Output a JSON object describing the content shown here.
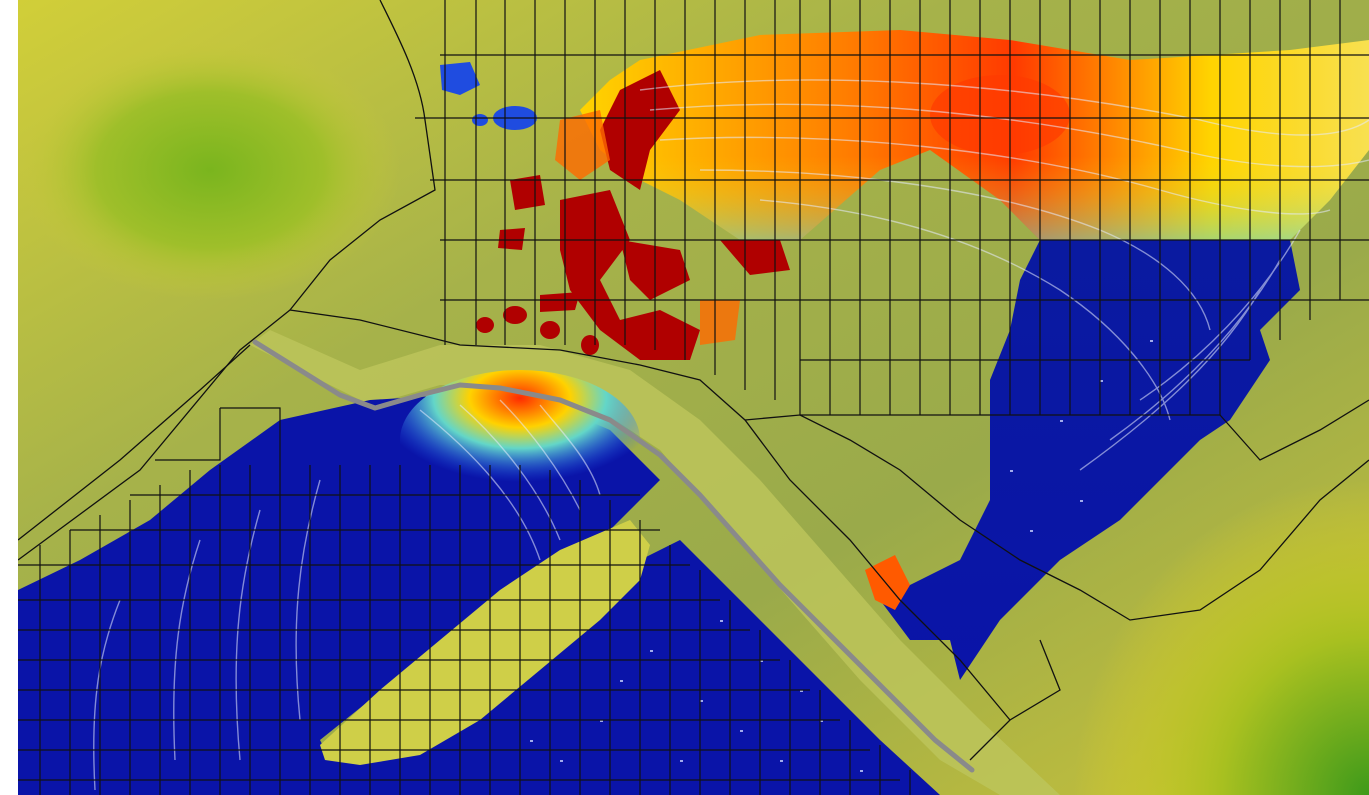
{
  "scene": {
    "kind": "hydraulic-flow-simulation",
    "colors": {
      "terrain_low": "#c9c83c",
      "terrain_mid": "#9fae46",
      "terrain_high": "#6e9a1c",
      "water_deep": "#0a14a8",
      "water_mid": "#1f5cf0",
      "velocity_low": "#63d6c8",
      "velocity_mid": "#ffd400",
      "velocity_high": "#ff3a00",
      "velocity_peak": "#a00000",
      "mesh_line": "#111111",
      "levee_line": "#8a8a8a",
      "streamline": "#e6ecff"
    },
    "layers": [
      "terrain",
      "water-depth",
      "velocity",
      "flow-streamlines",
      "computational-mesh",
      "levee"
    ]
  }
}
